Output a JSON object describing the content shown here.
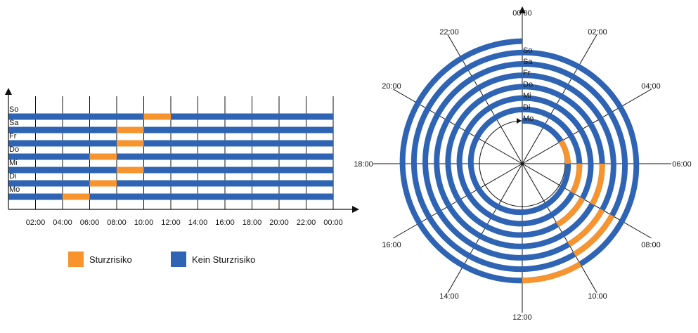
{
  "colors": {
    "risk": "#F7942E",
    "norisk": "#2E64B3",
    "line": "#111111"
  },
  "legend": {
    "risk_label": "Sturzrisiko",
    "norisk_label": "Kein Sturzrisiko"
  },
  "chart_data": [
    {
      "type": "timeline",
      "title": "",
      "xlabel": "",
      "ylabel": "",
      "x_unit": "hour",
      "xlim": [
        0,
        24
      ],
      "x_ticks": [
        "02:00",
        "04:00",
        "06:00",
        "08:00",
        "10:00",
        "12:00",
        "14:00",
        "16:00",
        "18:00",
        "20:00",
        "22:00",
        "00:00"
      ],
      "grid": true,
      "days": [
        "Mo",
        "Di",
        "Mi",
        "Do",
        "Fr",
        "Sa",
        "So"
      ],
      "series": [
        {
          "name": "Sturzrisiko",
          "intervals": {
            "Mo": [
              [
                4,
                6
              ]
            ],
            "Di": [
              [
                6,
                8
              ]
            ],
            "Mi": [
              [
                8,
                10
              ]
            ],
            "Do": [
              [
                6,
                8
              ]
            ],
            "Fr": [
              [
                8,
                10
              ]
            ],
            "Sa": [
              [
                8,
                10
              ]
            ],
            "So": [
              [
                10,
                12
              ]
            ]
          }
        },
        {
          "name": "Kein Sturzrisiko",
          "intervals": "rest of each day (0–24 h)"
        }
      ]
    },
    {
      "type": "spiral",
      "title": "",
      "x_unit": "hour",
      "xlim": [
        0,
        24
      ],
      "hour_ticks": [
        "00:00",
        "02:00",
        "04:00",
        "06:00",
        "08:00",
        "10:00",
        "12:00",
        "14:00",
        "16:00",
        "18:00",
        "20:00",
        "22:00"
      ],
      "days": [
        "Mo",
        "Di",
        "Mi",
        "Do",
        "Fr",
        "Sa",
        "So"
      ],
      "series": [
        {
          "name": "Sturzrisiko",
          "intervals": {
            "Mo": [
              [
                4,
                6
              ]
            ],
            "Di": [
              [
                6,
                8
              ]
            ],
            "Mi": [
              [
                8,
                10
              ]
            ],
            "Do": [
              [
                6,
                8
              ]
            ],
            "Fr": [
              [
                8,
                10
              ]
            ],
            "Sa": [
              [
                8,
                10
              ]
            ],
            "So": [
              [
                10,
                12
              ]
            ]
          }
        },
        {
          "name": "Kein Sturzrisiko",
          "intervals": "rest of each day (0–24 h)"
        }
      ]
    }
  ]
}
